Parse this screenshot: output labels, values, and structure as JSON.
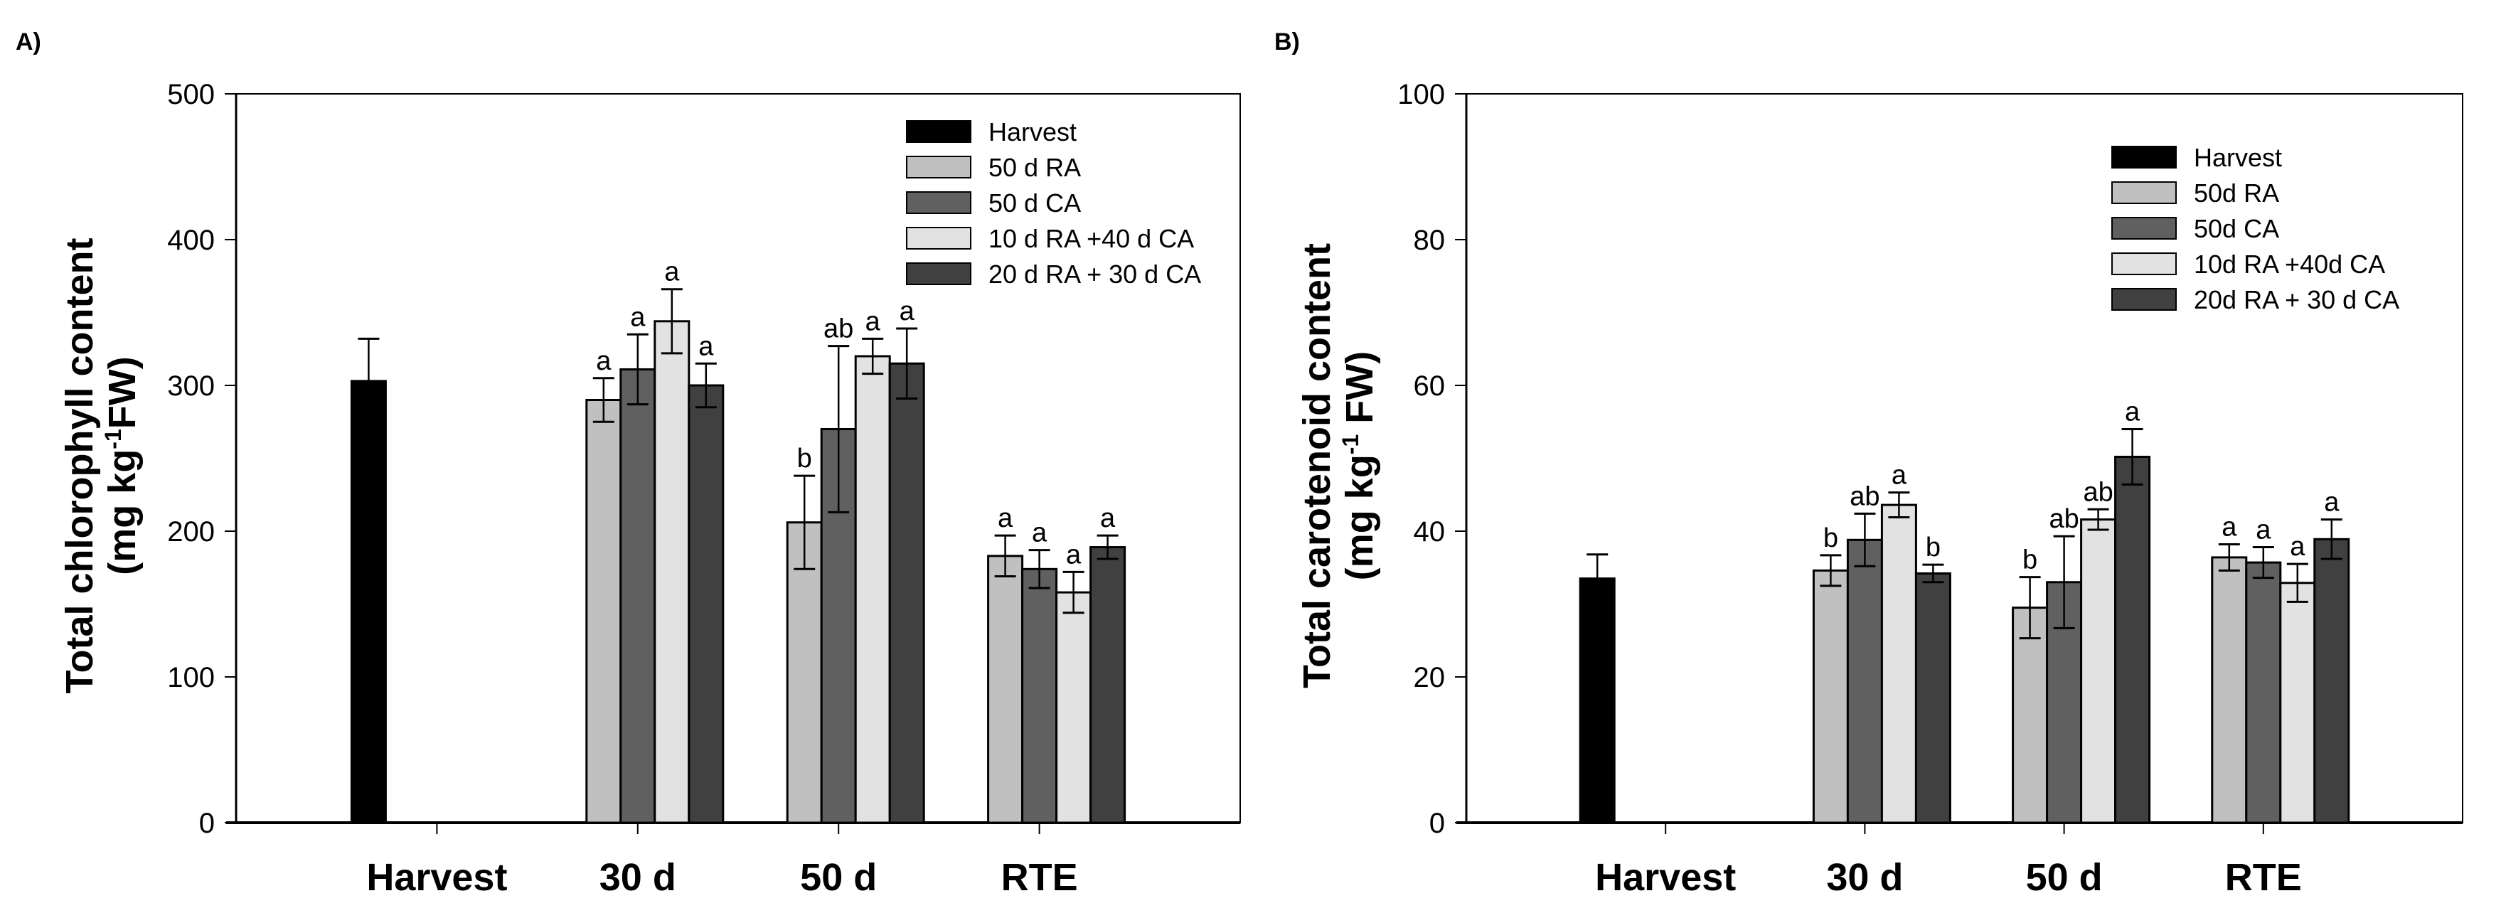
{
  "chart_data": [
    {
      "type": "bar",
      "panel_label": "A)",
      "ylabel_line1": "Total chlorophyll content",
      "ylabel_line2_prefix": "(mg kg",
      "ylabel_sup": "-1",
      "ylabel_line2_suffix": "FW)",
      "ylim": [
        0,
        500
      ],
      "yticks": [
        0,
        100,
        200,
        300,
        400,
        500
      ],
      "categories": [
        "Harvest",
        "30 d",
        "50 d",
        "RTE"
      ],
      "legend_position": "top-right",
      "series": [
        {
          "name": "Harvest",
          "color": "#000000",
          "values": [
            303,
            null,
            null,
            null
          ],
          "errors": [
            29,
            null,
            null,
            null
          ],
          "letters": [
            "",
            "",
            "",
            ""
          ]
        },
        {
          "name": "50 d RA",
          "color": "#c0c0c0",
          "values": [
            null,
            290,
            206,
            183
          ],
          "errors": [
            null,
            15,
            32,
            14
          ],
          "letters": [
            "",
            "a",
            "b",
            "a"
          ]
        },
        {
          "name": "50 d CA",
          "color": "#606060",
          "values": [
            null,
            311,
            270,
            174
          ],
          "errors": [
            null,
            24,
            57,
            13
          ],
          "letters": [
            "",
            "a",
            "ab",
            "a"
          ]
        },
        {
          "name": "10 d RA +40 d CA",
          "color": "#e2e2e2",
          "values": [
            null,
            344,
            320,
            158
          ],
          "errors": [
            null,
            22,
            12,
            14
          ],
          "letters": [
            "",
            "a",
            "a",
            "a"
          ]
        },
        {
          "name": "20 d RA + 30 d CA",
          "color": "#404040",
          "values": [
            null,
            300,
            315,
            189
          ],
          "errors": [
            null,
            15,
            24,
            8
          ],
          "letters": [
            "",
            "a",
            "a",
            "a"
          ]
        }
      ]
    },
    {
      "type": "bar",
      "panel_label": "B)",
      "ylabel_line1": "Total carotenoid content",
      "ylabel_line2_prefix": "(mg kg",
      "ylabel_sup": "-1",
      "ylabel_line2_suffix": " FW)",
      "ylim": [
        0,
        100
      ],
      "yticks": [
        0,
        20,
        40,
        60,
        80,
        100
      ],
      "categories": [
        "Harvest",
        "30 d",
        "50 d",
        "RTE"
      ],
      "legend_position": "top-right",
      "series": [
        {
          "name": "Harvest",
          "color": "#000000",
          "values": [
            33.5,
            null,
            null,
            null
          ],
          "errors": [
            3.3,
            null,
            null,
            null
          ],
          "letters": [
            "",
            "",
            "",
            ""
          ]
        },
        {
          "name": "50d RA",
          "color": "#c0c0c0",
          "values": [
            null,
            34.6,
            29.5,
            36.4
          ],
          "errors": [
            null,
            2.1,
            4.2,
            1.8
          ],
          "letters": [
            "",
            "b",
            "b",
            "a"
          ]
        },
        {
          "name": "50d CA",
          "color": "#606060",
          "values": [
            null,
            38.8,
            33.0,
            35.7
          ],
          "errors": [
            null,
            3.6,
            6.3,
            2.1
          ],
          "letters": [
            "",
            "ab",
            "ab",
            "a"
          ]
        },
        {
          "name": "10d RA +40d CA",
          "color": "#e2e2e2",
          "values": [
            null,
            43.6,
            41.6,
            32.9
          ],
          "errors": [
            null,
            1.7,
            1.4,
            2.6
          ],
          "letters": [
            "",
            "a",
            "ab",
            "a"
          ]
        },
        {
          "name": "20d RA + 30 d CA",
          "color": "#404040",
          "values": [
            null,
            34.2,
            50.2,
            38.9
          ],
          "errors": [
            null,
            1.2,
            3.8,
            2.7
          ],
          "letters": [
            "",
            "b",
            "a",
            "a"
          ]
        }
      ]
    }
  ]
}
